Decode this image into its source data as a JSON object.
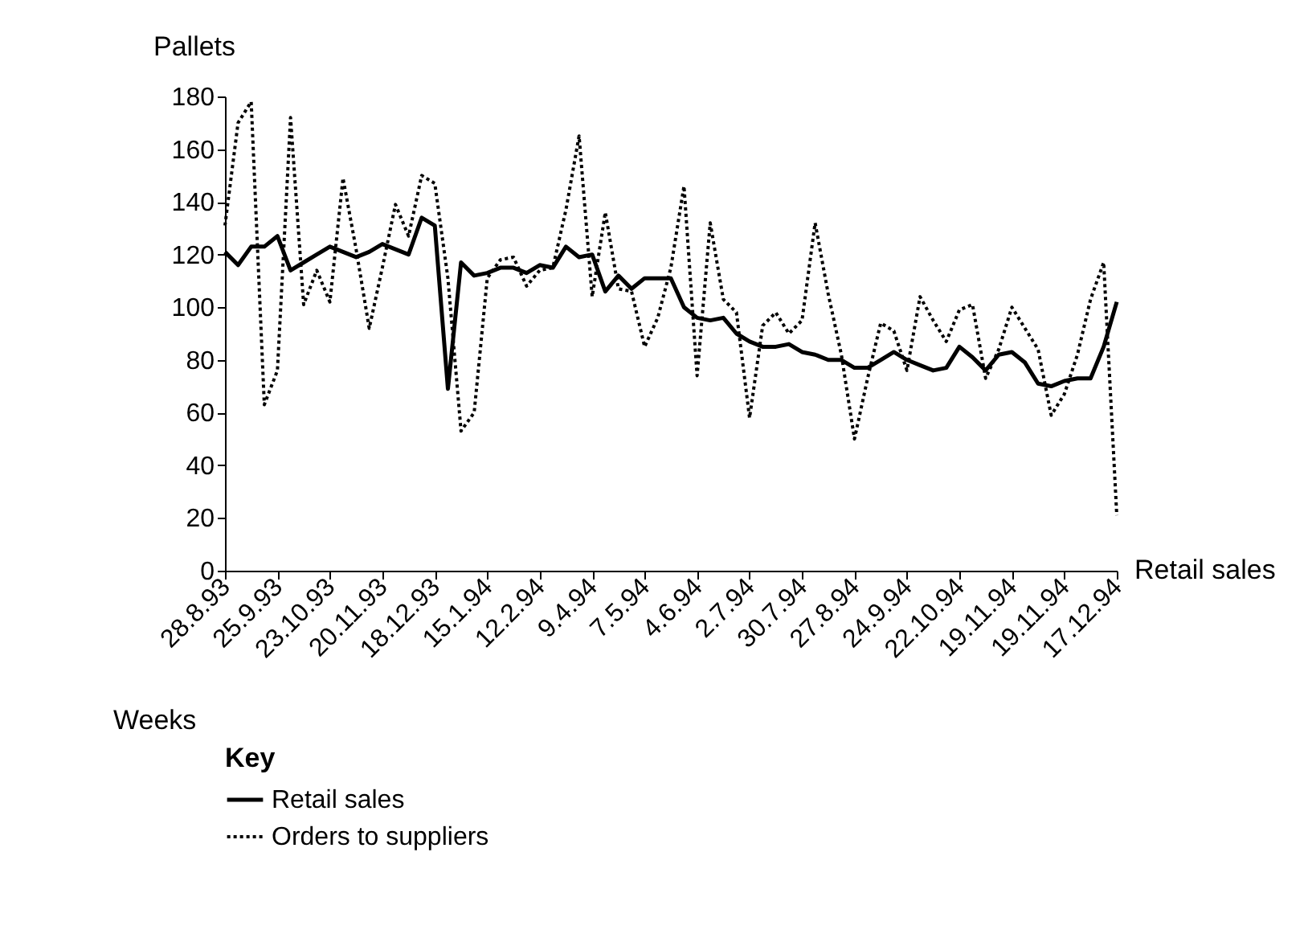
{
  "chart_data": {
    "type": "line",
    "ylabel": "Pallets",
    "xlabel": "Weeks",
    "legend_title": "Key",
    "categories": [
      "28.8.93",
      null,
      null,
      null,
      "25.9.93",
      null,
      null,
      null,
      "23.10.93",
      null,
      null,
      null,
      "20.11.93",
      null,
      null,
      null,
      "18.12.93",
      null,
      null,
      null,
      "15.1.94",
      null,
      null,
      null,
      "12.2.94",
      null,
      null,
      null,
      "9.4.94",
      null,
      null,
      null,
      "7.5.94",
      null,
      null,
      null,
      "4.6.94",
      null,
      null,
      null,
      "2.7.94",
      null,
      null,
      null,
      "30.7.94",
      null,
      null,
      null,
      "27.8.94",
      null,
      null,
      null,
      "24.9.94",
      null,
      null,
      null,
      "22.10.94",
      null,
      null,
      null,
      "19.11.94",
      null,
      null,
      null,
      "19.11.94",
      null,
      null,
      null,
      "17.12.94"
    ],
    "series": [
      {
        "name": "Retail sales",
        "color": "#000000",
        "line_style": "solid",
        "values": [
          121,
          116,
          123,
          123,
          127,
          114,
          117,
          120,
          123,
          121,
          119,
          121,
          124,
          122,
          120,
          134,
          131,
          69,
          117,
          112,
          113,
          115,
          115,
          113,
          116,
          115,
          123,
          119,
          120,
          106,
          112,
          107,
          111,
          111,
          111,
          100,
          96,
          95,
          96,
          90,
          87,
          85,
          85,
          86,
          83,
          82,
          80,
          80,
          77,
          77,
          80,
          83,
          80,
          78,
          76,
          77,
          85,
          81,
          76,
          82,
          83,
          79,
          71,
          70,
          72,
          73,
          73,
          85,
          102
        ]
      },
      {
        "name": "Orders to suppliers",
        "color": "#000000",
        "line_style": "dotted",
        "values": [
          131,
          170,
          178,
          63,
          76,
          172,
          101,
          114,
          102,
          149,
          122,
          92,
          115,
          139,
          127,
          150,
          147,
          111,
          53,
          60,
          111,
          118,
          119,
          108,
          114,
          115,
          137,
          165,
          104,
          136,
          107,
          106,
          85,
          96,
          115,
          146,
          74,
          132,
          103,
          98,
          58,
          93,
          98,
          90,
          95,
          132,
          105,
          82,
          50,
          73,
          94,
          91,
          76,
          104,
          95,
          87,
          99,
          101,
          73,
          84,
          100,
          92,
          84,
          59,
          67,
          82,
          103,
          117,
          21
        ]
      }
    ],
    "ylim": [
      0,
      180
    ],
    "yticks": [
      0,
      20,
      40,
      60,
      80,
      100,
      120,
      140,
      160,
      180
    ],
    "grid": false,
    "legend": "bottom left",
    "annotations": [
      "Retail sales"
    ]
  }
}
